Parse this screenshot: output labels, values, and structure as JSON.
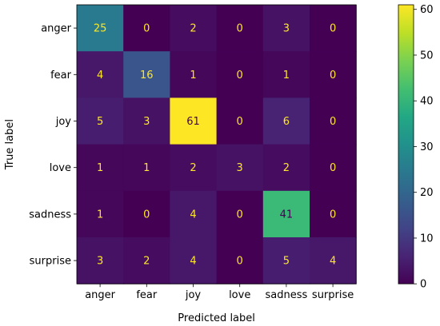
{
  "chart_data": {
    "type": "heatmap",
    "xlabel": "Predicted label",
    "ylabel": "True label",
    "x_categories": [
      "anger",
      "fear",
      "joy",
      "love",
      "sadness",
      "surprise"
    ],
    "y_categories": [
      "anger",
      "fear",
      "joy",
      "love",
      "sadness",
      "surprise"
    ],
    "values": [
      [
        25,
        0,
        2,
        0,
        3,
        0
      ],
      [
        4,
        16,
        1,
        0,
        1,
        0
      ],
      [
        5,
        3,
        61,
        0,
        6,
        0
      ],
      [
        1,
        1,
        2,
        3,
        2,
        0
      ],
      [
        1,
        0,
        4,
        0,
        41,
        0
      ],
      [
        3,
        2,
        4,
        0,
        5,
        4
      ]
    ],
    "colormap": "viridis",
    "vmin": 0,
    "vmax": 61,
    "colorbar_ticks": [
      0,
      10,
      20,
      30,
      40,
      50,
      60
    ],
    "text_color_dark_cells": "#fde725",
    "text_color_bright_cells": "#440154"
  }
}
